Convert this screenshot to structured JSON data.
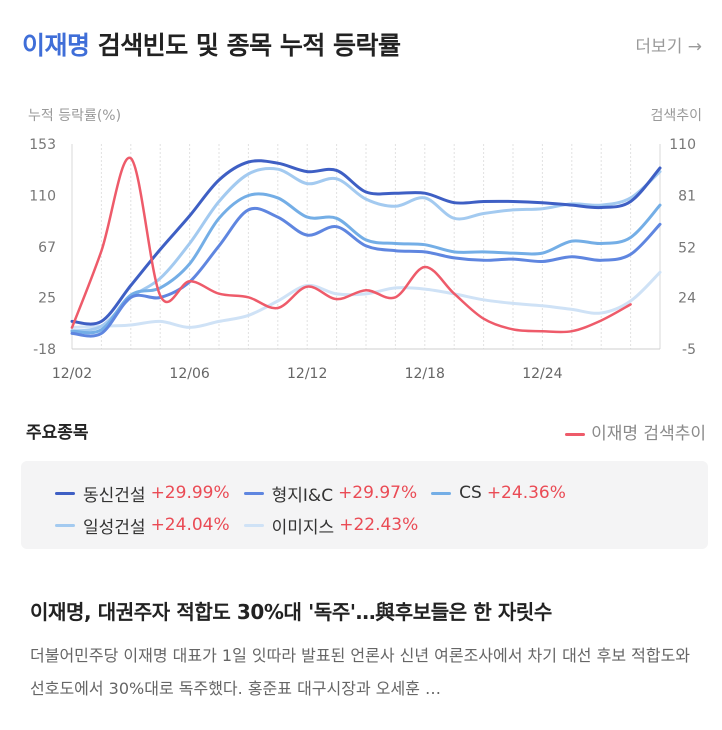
{
  "header": {
    "keyword": "이재명",
    "title_rest": " 검색빈도 및 종목 누적 등락률",
    "more_label": "더보기 →"
  },
  "chart_data": {
    "type": "line",
    "left_axis_label": "누적 등락률(%)",
    "right_axis_label": "검색추이",
    "y_left_ticks": [
      153,
      110,
      67,
      25,
      -18
    ],
    "y_left_range": [
      -18,
      153
    ],
    "y_right_ticks": [
      110,
      81,
      52,
      24,
      -5
    ],
    "y_right_range": [
      -5,
      110
    ],
    "x_ticks": [
      "12/02",
      "12/06",
      "12/12",
      "12/18",
      "12/24"
    ],
    "x": [
      0,
      1,
      2,
      3,
      4,
      5,
      6,
      7,
      8,
      9,
      10,
      11,
      12,
      13,
      14,
      15,
      16,
      17,
      18,
      19,
      20
    ],
    "x_tick_index": [
      0,
      4,
      8,
      12,
      16
    ],
    "series": [
      {
        "name": "동신건설",
        "color": "#3e5fc4",
        "values": [
          5,
          5,
          35,
          65,
          93,
          123,
          138,
          137,
          130,
          131,
          113,
          112,
          112,
          104,
          105,
          105,
          104,
          102,
          100,
          105,
          133
        ]
      },
      {
        "name": "형지I&C",
        "color": "#5f86e0",
        "values": [
          -5,
          -5,
          25,
          25,
          38,
          68,
          98,
          92,
          77,
          84,
          68,
          64,
          63,
          58,
          56,
          57,
          55,
          59,
          56,
          61,
          86
        ]
      },
      {
        "name": "CS",
        "color": "#74aee6",
        "values": [
          -3,
          -2,
          27,
          33,
          53,
          91,
          110,
          108,
          92,
          91,
          73,
          70,
          69,
          63,
          63,
          62,
          62,
          72,
          70,
          75,
          102
        ]
      },
      {
        "name": "일성건설",
        "color": "#a3caf0",
        "values": [
          -3,
          1,
          25,
          41,
          70,
          105,
          128,
          132,
          120,
          124,
          107,
          101,
          108,
          91,
          95,
          98,
          99,
          103,
          102,
          108,
          130
        ]
      },
      {
        "name": "이미지스",
        "color": "#cfe2f6",
        "values": [
          0,
          1,
          2,
          5,
          0,
          5,
          10,
          22,
          35,
          28,
          28,
          33,
          32,
          28,
          23,
          20,
          18,
          15,
          12,
          22,
          46
        ]
      }
    ],
    "search_trend": {
      "name": "이재명 검색추이",
      "color": "#ee5b6a",
      "values": [
        7,
        50,
        102,
        25,
        33,
        26,
        24,
        18,
        30,
        23,
        28,
        24,
        41,
        26,
        12,
        6,
        5,
        5,
        11,
        20
      ]
    },
    "grid": "vertical"
  },
  "section": {
    "title": "주요종목",
    "search_legend": "이재명 검색추이"
  },
  "legend": [
    {
      "name": "동신건설",
      "change": "+29.99%",
      "color": "#3e5fc4"
    },
    {
      "name": "형지I&C",
      "change": "+29.97%",
      "color": "#5f86e0"
    },
    {
      "name": "CS",
      "change": "+24.36%",
      "color": "#74aee6"
    },
    {
      "name": "일성건설",
      "change": "+24.04%",
      "color": "#a3caf0"
    },
    {
      "name": "이미지스",
      "change": "+22.43%",
      "color": "#cfe2f6"
    }
  ],
  "news": {
    "title": "이재명, 대권주자 적합도 30%대 '독주'…與후보들은 한 자릿수",
    "body": "더불어민주당 이재명 대표가 1일 잇따라 발표된 언론사 신년 여론조사에서 차기 대선 후보 적합도와 선호도에서 30%대로 독주했다. 홍준표 대구시장과 오세훈 …"
  }
}
